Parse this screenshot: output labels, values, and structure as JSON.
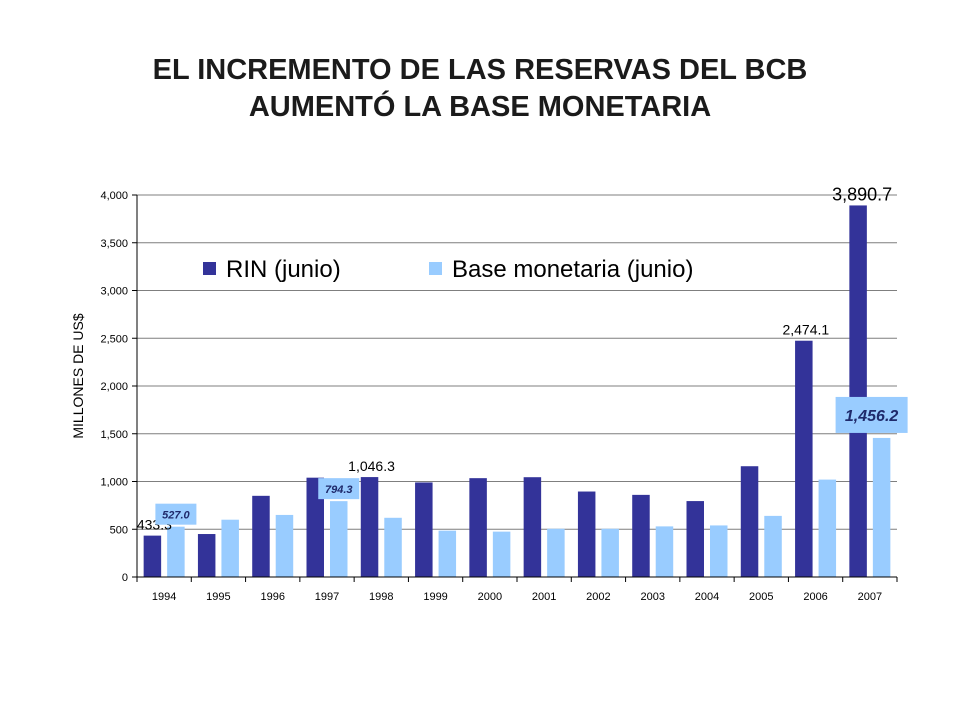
{
  "page": {
    "title_line1": "EL INCREMENTO DE LAS RESERVAS DEL BCB",
    "title_line2": "AUMENTÓ LA BASE MONETARIA"
  },
  "chart_data": {
    "type": "bar",
    "ylabel": "MILLONES DE US$",
    "xlabel": "",
    "ylim": [
      0,
      4000
    ],
    "yticks": [
      0,
      500,
      1000,
      1500,
      2000,
      2500,
      3000,
      3500,
      4000
    ],
    "ytick_labels": [
      "0",
      "500",
      "1,000",
      "1,500",
      "2,000",
      "2,500",
      "3,000",
      "3,500",
      "4,000"
    ],
    "grid": "horizontal",
    "legend_position": "top",
    "categories": [
      "1994",
      "1995",
      "1996",
      "1997",
      "1998",
      "1999",
      "2000",
      "2001",
      "2002",
      "2003",
      "2004",
      "2005",
      "2006",
      "2007"
    ],
    "series": [
      {
        "name": "RIN (junio)",
        "color": "#333399",
        "values": [
          433.3,
          450,
          850,
          1040,
          1046.3,
          990,
          1035,
          1045,
          895,
          860,
          795,
          1160,
          2474.1,
          3890.7
        ]
      },
      {
        "name": "Base monetaria (junio)",
        "color": "#99ccff",
        "values": [
          527.0,
          600,
          650,
          794.3,
          620,
          485,
          475,
          505,
          505,
          530,
          540,
          640,
          1020,
          1456.2
        ]
      }
    ],
    "annotations": [
      {
        "series": 0,
        "index": 0,
        "text": "433.3",
        "style": "plain"
      },
      {
        "series": 1,
        "index": 0,
        "text": "527.0",
        "style": "box"
      },
      {
        "series": 1,
        "index": 3,
        "text": "794.3",
        "style": "box"
      },
      {
        "series": 0,
        "index": 4,
        "text": "1,046.3",
        "style": "plain"
      },
      {
        "series": 0,
        "index": 12,
        "text": "2,474.1",
        "style": "plain"
      },
      {
        "series": 1,
        "index": 13,
        "text": "1,456.2",
        "style": "box-big"
      },
      {
        "series": 0,
        "index": 13,
        "text": "3,890.7",
        "style": "plain-big"
      }
    ]
  }
}
